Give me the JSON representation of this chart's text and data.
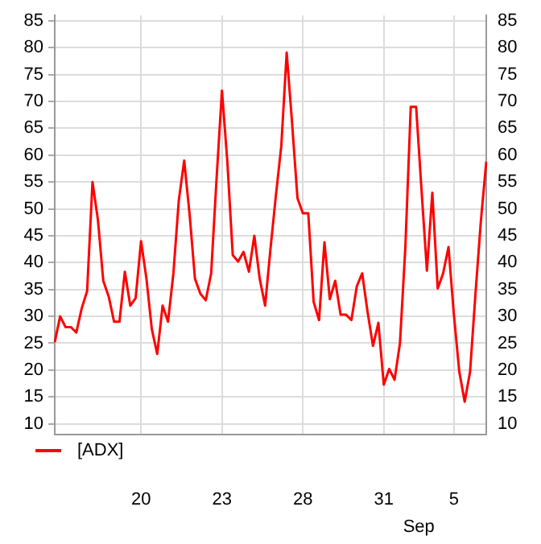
{
  "chart_data": {
    "type": "line",
    "legend": "bottom",
    "grid": true,
    "marker": "none",
    "line_style": "solid",
    "categories": [
      null,
      null,
      null,
      null,
      null,
      null,
      null,
      null,
      null,
      null,
      null,
      null,
      null,
      null,
      null,
      null,
      "20",
      null,
      null,
      null,
      null,
      null,
      null,
      null,
      null,
      null,
      null,
      null,
      null,
      null,
      null,
      "23",
      null,
      null,
      null,
      null,
      null,
      null,
      null,
      null,
      null,
      null,
      null,
      null,
      null,
      null,
      "28",
      null,
      null,
      null,
      null,
      null,
      null,
      null,
      null,
      null,
      null,
      null,
      null,
      null,
      null,
      "31",
      null,
      null,
      null,
      null,
      null,
      null,
      null,
      null,
      null,
      null,
      null,
      null,
      "5",
      null,
      null,
      null,
      null,
      null,
      null
    ],
    "ylim": [
      8,
      86
    ],
    "yticks": [
      10,
      15,
      20,
      25,
      30,
      35,
      40,
      45,
      50,
      55,
      60,
      65,
      70,
      75,
      80,
      85
    ],
    "y2lim": [
      8,
      86
    ],
    "y2ticks": [
      10,
      15,
      20,
      25,
      30,
      35,
      40,
      45,
      50,
      55,
      60,
      65,
      70,
      75,
      80,
      85
    ],
    "annotations": [
      "Sep"
    ],
    "series": [
      {
        "name": "[ADX]",
        "color": "#ff0000",
        "values": [
          25.2,
          30,
          28,
          28,
          27,
          31.5,
          34.7,
          55,
          48,
          36.6,
          33.7,
          29,
          29,
          38.3,
          32,
          33.4,
          44,
          37,
          27.6,
          23,
          32,
          29,
          38,
          51.6,
          59,
          49,
          37,
          34.2,
          33,
          38,
          55.6,
          72,
          58.8,
          41.4,
          40.2,
          42,
          38.3,
          45,
          37,
          32,
          42.6,
          52.5,
          61.7,
          79.1,
          66,
          52,
          49.2,
          49.2,
          32.7,
          29.3,
          43.8,
          33.2,
          36.6,
          30.3,
          30.3,
          29.3,
          35.6,
          38,
          30.8,
          24.5,
          28.8,
          17.3,
          20.2,
          18.2,
          25,
          42.8,
          69,
          69,
          53.5,
          38.5,
          53,
          35.2,
          38,
          42.9,
          30.3,
          19.7,
          14.1,
          19.7,
          34.2,
          47.7,
          58.8
        ]
      }
    ]
  }
}
